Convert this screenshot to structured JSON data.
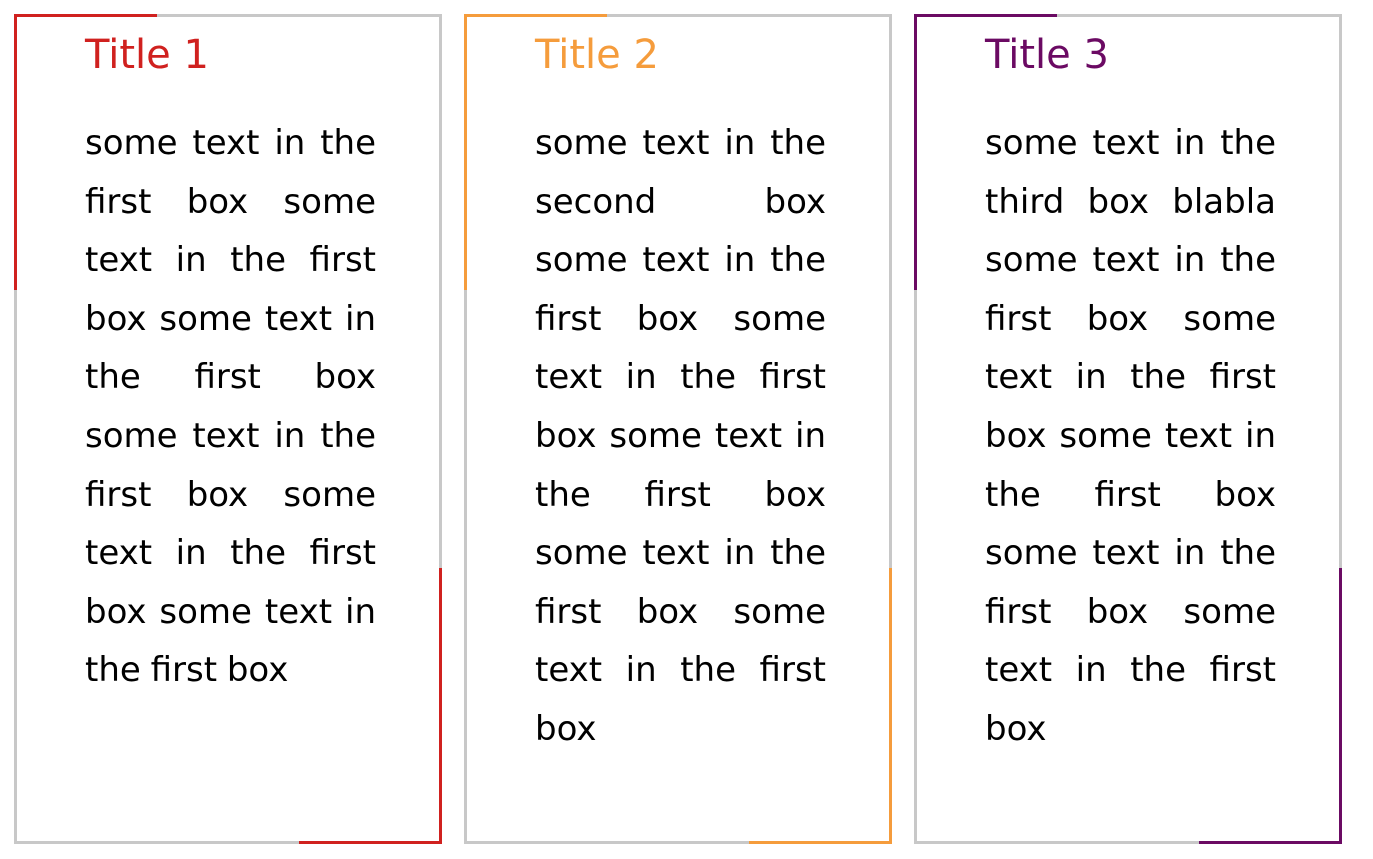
{
  "colors": {
    "border": "#c8c8c8",
    "box1_accent": "#d0211f",
    "box2_accent": "#f59c3c",
    "box3_accent": "#6b0a63",
    "text": "#000000"
  },
  "boxes": [
    {
      "title": "Title 1",
      "text": "some text in the first box some text in the first box some text in the first box some text in the first box some text in the first box some text in the first box"
    },
    {
      "title": "Title 2",
      "text": "some text in the second box some text in the first box some text in the first box some text in the first box some text in the first box some text in the first box"
    },
    {
      "title": "Title 3",
      "text": "some text in the third box blabla some text in the first box some text in the first box some text in the first box some text in the first box some text in the first box"
    }
  ]
}
